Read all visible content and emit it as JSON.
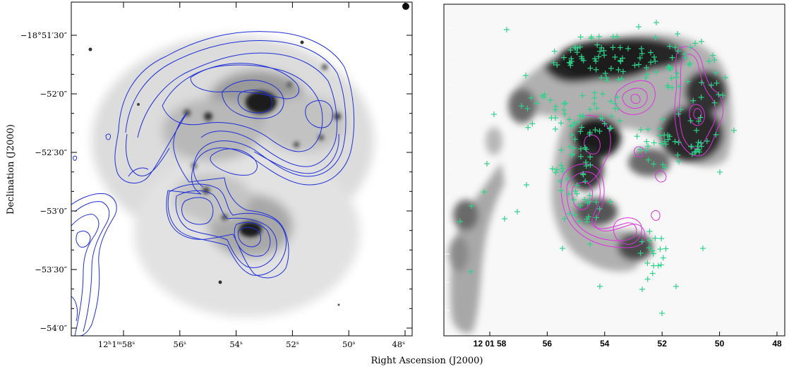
{
  "colors": {
    "left_contours": "#1f2fd8",
    "right_contours": "#dd33dd",
    "markers": "#2fd28a"
  },
  "figure": {
    "xlabel": "Right Ascension (J2000)",
    "ylabel": "Declination (J2000)"
  },
  "left_panel": {
    "y_ticks": [
      {
        "label": "−18°51′30″",
        "dec_arcsec": -90
      },
      {
        "label": "−52′0″",
        "dec_arcsec": -120
      },
      {
        "label": "−52′30″",
        "dec_arcsec": -150
      },
      {
        "label": "−53′0″",
        "dec_arcsec": -180
      },
      {
        "label": "−53′30″",
        "dec_arcsec": -210
      },
      {
        "label": "−54′0″",
        "dec_arcsec": -240
      }
    ],
    "x_ticks": [
      {
        "label": "12ʰ1ᵐ58ˢ",
        "ra_s": 58
      },
      {
        "label": "56ˢ",
        "ra_s": 56
      },
      {
        "label": "54ˢ",
        "ra_s": 54
      },
      {
        "label": "52ˢ",
        "ra_s": 52
      },
      {
        "label": "50ˢ",
        "ra_s": 50
      },
      {
        "label": "48ˢ",
        "ra_s": 48
      }
    ]
  },
  "right_panel": {
    "x_ticks": [
      {
        "label": "12 01 58",
        "ra_s": 58
      },
      {
        "label": "56",
        "ra_s": 56
      },
      {
        "label": "54",
        "ra_s": 54
      },
      {
        "label": "52",
        "ra_s": 52
      },
      {
        "label": "50",
        "ra_s": 50
      },
      {
        "label": "48",
        "ra_s": 48
      }
    ]
  }
}
